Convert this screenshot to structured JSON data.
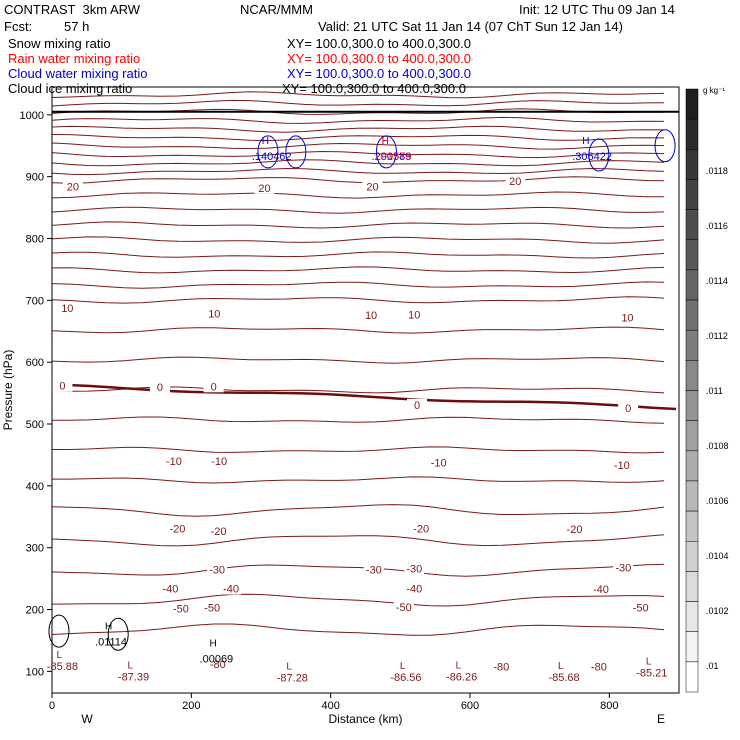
{
  "header": {
    "model": "CONTRAST  3km ARW",
    "center": "NCAR/MMM",
    "init": "Init: 12 UTC Thu 09 Jan 14",
    "fcst_label": "Fcst:",
    "fcst_value": "57 h",
    "valid": "Valid: 21 UTC Sat 11 Jan 14 (07 ChT Sun 12 Jan 14)"
  },
  "fields": [
    {
      "name": "Snow mixing ratio",
      "xy": "XY= 100.0,300.0 to 400.0,300.0",
      "color": "#000000"
    },
    {
      "name": "Rain water mixing ratio",
      "xy": "XY= 100.0,300.0 to 400.0,300.0",
      "color": "#ff0000"
    },
    {
      "name": "Cloud water mixing ratio",
      "xy": "XY= 100.0,300.0 to 400.0,300.0",
      "color": "#0000cc"
    },
    {
      "name": "Cloud ice mixing ratio",
      "xy": "XY= 100.0,300.0 to 400.0,300.0",
      "color": "#000000"
    }
  ],
  "chart_data": {
    "type": "contour",
    "xlabel": "Distance (km)",
    "ylabel": "Pressure (hPa)",
    "xlim": [
      0,
      900
    ],
    "ylim": [
      1045,
      65
    ],
    "xticks": [
      0,
      200,
      400,
      600,
      800
    ],
    "yticks": [
      100,
      200,
      300,
      400,
      500,
      600,
      700,
      800,
      900,
      1000
    ],
    "west_label": "W",
    "east_label": "E",
    "temperature_contours": [
      {
        "level": -80,
        "labels": [
          {
            "x": 238,
            "p": 112,
            "text": "-80"
          },
          {
            "x": 645,
            "p": 108,
            "text": "-80"
          },
          {
            "x": 785,
            "p": 108,
            "text": "-80"
          }
        ]
      },
      {
        "level": -50,
        "labels": [
          {
            "x": 185,
            "p": 202,
            "text": "-50"
          },
          {
            "x": 230,
            "p": 203,
            "text": "-50"
          },
          {
            "x": 505,
            "p": 204,
            "text": "-50"
          },
          {
            "x": 845,
            "p": 203,
            "text": "-50"
          }
        ]
      },
      {
        "level": -40,
        "labels": [
          {
            "x": 170,
            "p": 234,
            "text": "-40"
          },
          {
            "x": 257,
            "p": 234,
            "text": "-40"
          },
          {
            "x": 520,
            "p": 234,
            "text": "-40"
          },
          {
            "x": 788,
            "p": 233,
            "text": "-40"
          }
        ]
      },
      {
        "level": -30,
        "labels": [
          {
            "x": 237,
            "p": 265,
            "text": "-30"
          },
          {
            "x": 462,
            "p": 265,
            "text": "-30"
          },
          {
            "x": 520,
            "p": 266,
            "text": "-30"
          },
          {
            "x": 820,
            "p": 268,
            "text": "-30"
          }
        ]
      },
      {
        "level": -20,
        "labels": [
          {
            "x": 180,
            "p": 331,
            "text": "-20"
          },
          {
            "x": 239,
            "p": 327,
            "text": "-20"
          },
          {
            "x": 530,
            "p": 331,
            "text": "-20"
          },
          {
            "x": 750,
            "p": 330,
            "text": "-20"
          }
        ]
      },
      {
        "level": -10,
        "labels": [
          {
            "x": 175,
            "p": 440,
            "text": "-10"
          },
          {
            "x": 240,
            "p": 440,
            "text": "-10"
          },
          {
            "x": 555,
            "p": 438,
            "text": "-10"
          },
          {
            "x": 818,
            "p": 434,
            "text": "-10"
          }
        ]
      },
      {
        "level": 0,
        "labels": [
          {
            "x": 15,
            "p": 562,
            "text": "0"
          },
          {
            "x": 155,
            "p": 560,
            "text": "0"
          },
          {
            "x": 232,
            "p": 561,
            "text": "0"
          },
          {
            "x": 524,
            "p": 531,
            "text": "0"
          },
          {
            "x": 827,
            "p": 526,
            "text": "0"
          }
        ]
      },
      {
        "level": 10,
        "labels": [
          {
            "x": 22,
            "p": 688,
            "text": "10"
          },
          {
            "x": 233,
            "p": 679,
            "text": "10"
          },
          {
            "x": 458,
            "p": 676,
            "text": "10"
          },
          {
            "x": 520,
            "p": 677,
            "text": "10"
          },
          {
            "x": 826,
            "p": 672,
            "text": "10"
          }
        ]
      },
      {
        "level": 20,
        "labels": [
          {
            "x": 30,
            "p": 884,
            "text": "20"
          },
          {
            "x": 305,
            "p": 882,
            "text": "20"
          },
          {
            "x": 460,
            "p": 884,
            "text": "20"
          },
          {
            "x": 665,
            "p": 893,
            "text": "20"
          }
        ]
      }
    ],
    "upper_level_labels": [
      {
        "x": 15,
        "p": 112,
        "text": "-85.88"
      },
      {
        "x": 117,
        "p": 95,
        "text": "-87.39"
      },
      {
        "x": 345,
        "p": 93,
        "text": "-87.28"
      },
      {
        "x": 508,
        "p": 94,
        "text": "-86.56"
      },
      {
        "x": 588,
        "p": 95,
        "text": "-86.26"
      },
      {
        "x": 735,
        "p": 94,
        "text": "-85.68"
      },
      {
        "x": 861,
        "p": 101,
        "text": "-85.21"
      }
    ],
    "extrema": [
      {
        "x": 79,
        "p": 155,
        "kind": "H",
        "value": ".01114",
        "field": "cloud ice"
      },
      {
        "x": 229,
        "p": 127,
        "kind": "H",
        "value": ".00069",
        "field": "cloud ice"
      },
      {
        "x": 304,
        "p": 940,
        "kind": "H",
        "value": ".140462",
        "field": "cloud water"
      },
      {
        "x": 476,
        "p": 940,
        "kind": "H",
        "value": ".290589",
        "field": "cloud water"
      },
      {
        "x": 476,
        "p": 940,
        "kind": "H",
        "value": ".201573",
        "field": "rain water"
      },
      {
        "x": 764,
        "p": 940,
        "kind": "H",
        "value": ".306422",
        "field": "cloud water"
      }
    ],
    "colorbar": {
      "unit": "g kg⁻¹",
      "labels": [
        ".0118",
        ".0116",
        ".0114",
        ".0112",
        ".011",
        ".0108",
        ".0106",
        ".0104",
        ".0102",
        ".01"
      ]
    }
  }
}
